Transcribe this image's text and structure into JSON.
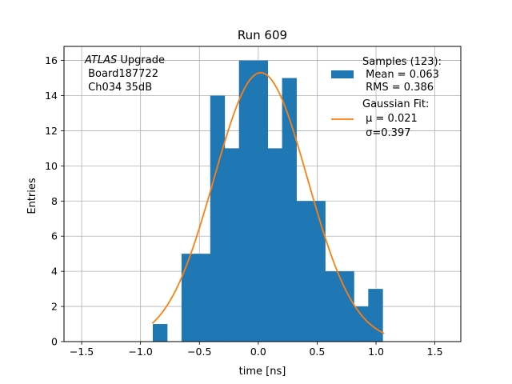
{
  "chart_data": {
    "type": "bar",
    "title": "Run 609",
    "xlabel": "time [ns]",
    "ylabel": "Entries",
    "xlim": [
      -1.65,
      1.72
    ],
    "ylim": [
      0,
      16.8
    ],
    "xticks": [
      -1.5,
      -1.0,
      -0.5,
      0.0,
      0.5,
      1.0,
      1.5
    ],
    "xtick_labels": [
      "−1.5",
      "−1.0",
      "−0.5",
      "0.0",
      "0.5",
      "1.0",
      "1.5"
    ],
    "yticks": [
      0,
      2,
      4,
      6,
      8,
      10,
      12,
      14,
      16
    ],
    "ytick_labels": [
      "0",
      "2",
      "4",
      "6",
      "8",
      "10",
      "12",
      "14",
      "16"
    ],
    "grid": true,
    "bin_width": 0.122,
    "histogram": {
      "bin_left_edges": [
        -0.896,
        -0.774,
        -0.652,
        -0.53,
        -0.408,
        -0.286,
        -0.164,
        -0.042,
        0.08,
        0.202,
        0.324,
        0.446,
        0.568,
        0.69,
        0.812,
        0.934
      ],
      "counts": [
        1,
        0,
        5,
        5,
        14,
        11,
        16,
        16,
        11,
        15,
        8,
        8,
        4,
        4,
        2,
        3
      ],
      "color": "#1f77b4"
    },
    "fit_curve": {
      "type": "gaussian",
      "amplitude": 15.3,
      "mu": 0.021,
      "sigma": 0.397,
      "x_range": [
        -0.9,
        1.07
      ],
      "color": "#ff7f0e"
    },
    "annotation": {
      "italic_prefix": "ATLAS",
      "line1_rest": " Upgrade",
      "line2": " Board187722",
      "line3": " Ch034 35dB"
    },
    "legend": {
      "placement": "upper right",
      "samples_label": [
        "Samples (123):",
        " Mean = 0.063",
        " RMS = 0.386"
      ],
      "fit_label": [
        "Gaussian Fit:",
        " μ = 0.021",
        " σ=0.397"
      ]
    }
  }
}
